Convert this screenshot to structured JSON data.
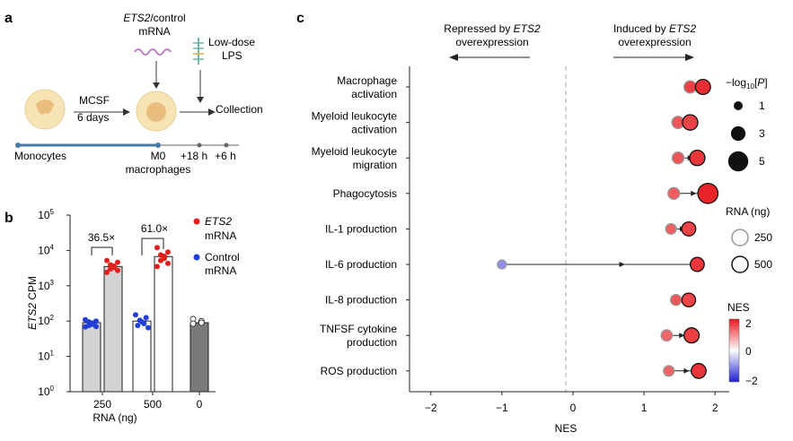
{
  "panel_a": {
    "letter": "a",
    "mrna_label_italic": "ETS2",
    "mrna_label_rest": "/control",
    "mrna_label_line2": "mRNA",
    "lps_line1": "Low-dose",
    "lps_line2": "LPS",
    "mcsf": "MCSF",
    "days": "6 days",
    "collection": "Collection",
    "monocytes": "Monocytes",
    "m0": "M0",
    "macrophages": "macrophages",
    "t18": "+18 h",
    "t6": "+6 h",
    "colors": {
      "cell_outer": "#f6e4b5",
      "cell_nucleus": "#e9bd7d",
      "timeline": "#4a79a8",
      "mrna_wave": "#c07ac8",
      "lps": "#6fb5a8"
    }
  },
  "panel_b": {
    "letter": "b",
    "ylabel_italic": "ETS2",
    "ylabel_rest": " CPM",
    "xlabel": "RNA (ng)",
    "yticks": [
      "10",
      "10",
      "10",
      "10",
      "10",
      "10"
    ],
    "ytick_exps": [
      "0",
      "1",
      "2",
      "3",
      "4",
      "5"
    ],
    "xticks": [
      "250",
      "500",
      "0"
    ],
    "fold_labels": [
      "36.5×",
      "61.0×"
    ],
    "legend": [
      {
        "italic": "ETS2",
        "line2": "mRNA",
        "color": "#e0201b"
      },
      {
        "italic": "",
        "line1": "Control",
        "line2": "mRNA",
        "color": "#1f3fd6"
      }
    ],
    "chart_data": {
      "type": "bar",
      "yscale": "log",
      "ylim": [
        1,
        100000
      ],
      "categories": [
        "250",
        "500",
        "0"
      ],
      "bars": [
        {
          "group": "250",
          "condition": "Control mRNA",
          "value": 90,
          "fill": "#d3d3d3",
          "dots": [
            110,
            100,
            95,
            88,
            82,
            75,
            70,
            68
          ],
          "dot_color": "#1f3fd6"
        },
        {
          "group": "250",
          "condition": "ETS2 mRNA",
          "value": 3500,
          "fill": "#d3d3d3",
          "dots": [
            5200,
            4600,
            3900,
            3600,
            3300,
            3000,
            2700,
            2400
          ],
          "dot_color": "#e0201b"
        },
        {
          "group": "500",
          "condition": "Control mRNA",
          "value": 100,
          "fill": "#ffffff",
          "dots": [
            150,
            125,
            105,
            95,
            85,
            75,
            65
          ],
          "dot_color": "#1f3fd6"
        },
        {
          "group": "500",
          "condition": "ETS2 mRNA",
          "value": 6700,
          "fill": "#ffffff",
          "dots": [
            12000,
            9000,
            7500,
            6800,
            6000,
            5200,
            4300,
            3500
          ],
          "dot_color": "#e0201b"
        },
        {
          "group": "0",
          "condition": "",
          "value": 90,
          "fill": "#7a7a7a",
          "dots": [
            115,
            100,
            90,
            85
          ],
          "dot_color": "#ffffff"
        }
      ]
    }
  },
  "panel_c": {
    "letter": "c",
    "repressed_pre": "Repressed by ",
    "repressed_italic": "ETS2",
    "repressed_line2": "overexpression",
    "induced_pre": "Induced by ",
    "induced_italic": "ETS2",
    "induced_line2": "overexpression",
    "xlabel": "NES",
    "legend_p_title_pre": "−log",
    "legend_p_sub": "10",
    "legend_p_post": "[",
    "legend_p_italic": "P",
    "legend_p_close": "]",
    "legend_p_values": [
      "1",
      "3",
      "5"
    ],
    "legend_rna_title": "RNA (ng)",
    "legend_rna_values": [
      "250",
      "500"
    ],
    "legend_nes_title": "NES",
    "legend_nes_ticks": [
      "2",
      "0",
      "−2"
    ],
    "chart_data": {
      "type": "scatter",
      "xlim": [
        -2.3,
        2.2
      ],
      "xticks": [
        "−2",
        "−1",
        "0",
        "1",
        "2"
      ],
      "xtick_values": [
        -2,
        -1,
        0,
        1,
        2
      ],
      "reference_line_x": 0,
      "categories": [
        [
          "Macrophage",
          "activation"
        ],
        [
          "Myeloid leukocyte",
          "activation"
        ],
        [
          "Myeloid leukocyte",
          "migration"
        ],
        [
          "Phagocytosis"
        ],
        [
          "IL-1 production"
        ],
        [
          "IL-6 production"
        ],
        [
          "IL-8 production"
        ],
        [
          "TNFSF cytokine",
          "production"
        ],
        [
          "ROS production"
        ]
      ],
      "series": [
        {
          "name": "250",
          "nes": [
            1.65,
            1.48,
            1.48,
            1.42,
            1.38,
            -1.0,
            1.45,
            1.32,
            1.35
          ],
          "neglog10p": [
            2.2,
            2.2,
            2.0,
            2.0,
            1.6,
            1.0,
            1.7,
            1.8,
            1.6
          ]
        },
        {
          "name": "500",
          "nes": [
            1.83,
            1.65,
            1.75,
            1.9,
            1.63,
            1.75,
            1.63,
            1.67,
            1.77
          ],
          "neglog10p": [
            3.2,
            3.3,
            3.3,
            5.0,
            2.8,
            2.8,
            2.7,
            3.2,
            3.1
          ]
        }
      ],
      "colorbar_range": [
        -2,
        2
      ],
      "colors": {
        "high": "#e8191f",
        "mid": "#ffffff",
        "low": "#1e1ed2"
      }
    }
  }
}
